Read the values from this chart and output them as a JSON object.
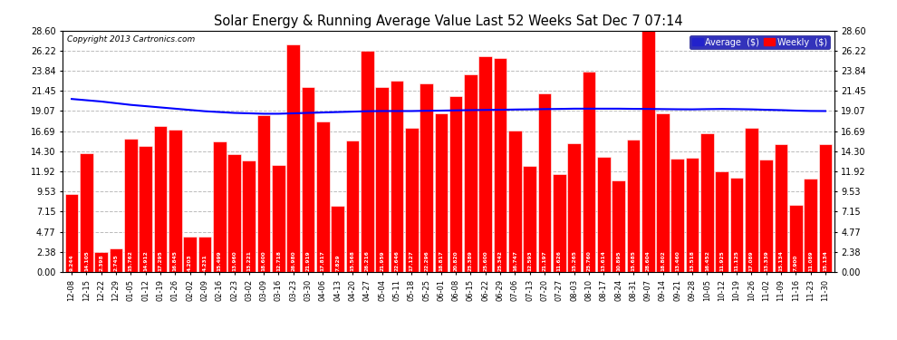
{
  "title": "Solar Energy & Running Average Value Last 52 Weeks Sat Dec 7 07:14",
  "copyright": "Copyright 2013 Cartronics.com",
  "bar_color": "#ff0000",
  "average_line_color": "#0000ff",
  "background_color": "#ffffff",
  "plot_bg_color": "#ffffff",
  "grid_color": "#bbbbbb",
  "ylim": [
    0.0,
    28.6
  ],
  "yticks": [
    0.0,
    2.38,
    4.77,
    7.15,
    9.53,
    11.92,
    14.3,
    16.69,
    19.07,
    21.45,
    23.84,
    26.22,
    28.6
  ],
  "legend_avg_color": "#0000cc",
  "legend_weekly_color": "#ff0000",
  "categories": [
    "12-08",
    "12-15",
    "12-22",
    "12-29",
    "01-05",
    "01-12",
    "01-19",
    "01-26",
    "02-02",
    "02-09",
    "02-16",
    "02-23",
    "03-02",
    "03-09",
    "03-16",
    "03-23",
    "03-30",
    "04-06",
    "04-13",
    "04-20",
    "04-27",
    "05-04",
    "05-11",
    "05-18",
    "05-25",
    "06-01",
    "06-08",
    "06-15",
    "06-22",
    "06-29",
    "07-06",
    "07-13",
    "07-20",
    "07-27",
    "08-03",
    "08-10",
    "08-17",
    "08-24",
    "08-31",
    "09-07",
    "09-14",
    "09-21",
    "09-28",
    "10-05",
    "10-12",
    "10-19",
    "10-26",
    "11-02",
    "11-09",
    "11-16",
    "11-23",
    "11-30"
  ],
  "weekly_values": [
    9.244,
    14.105,
    2.398,
    2.745,
    15.762,
    14.912,
    17.295,
    16.845,
    4.203,
    4.231,
    15.499,
    13.96,
    13.221,
    18.6,
    12.718,
    26.98,
    21.919,
    17.817,
    7.829,
    15.568,
    26.216,
    21.959,
    22.646,
    17.127,
    22.296,
    18.817,
    20.82,
    23.389,
    25.6,
    25.342,
    16.747,
    12.593,
    21.197,
    11.626,
    15.265,
    23.76,
    13.614,
    10.895,
    15.685,
    28.604,
    18.802,
    13.46,
    13.518,
    16.452,
    11.925,
    11.125,
    17.089,
    13.339,
    15.134,
    7.9,
    11.089,
    15.134
  ],
  "avg_values": [
    20.5,
    20.35,
    20.2,
    20.0,
    19.8,
    19.65,
    19.5,
    19.35,
    19.2,
    19.05,
    18.95,
    18.85,
    18.8,
    18.75,
    18.75,
    18.8,
    18.85,
    18.9,
    18.95,
    19.0,
    19.05,
    19.07,
    19.07,
    19.07,
    19.1,
    19.12,
    19.15,
    19.18,
    19.2,
    19.22,
    19.25,
    19.27,
    19.3,
    19.32,
    19.35,
    19.35,
    19.35,
    19.35,
    19.33,
    19.32,
    19.3,
    19.28,
    19.27,
    19.3,
    19.32,
    19.3,
    19.27,
    19.22,
    19.18,
    19.12,
    19.08,
    19.07
  ]
}
